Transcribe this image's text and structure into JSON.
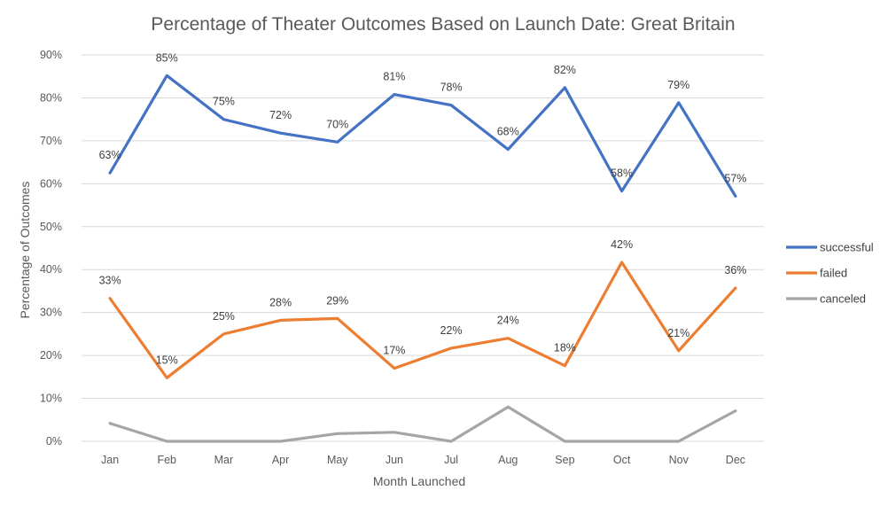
{
  "chart_data": {
    "type": "line",
    "title": "Percentage of Theater Outcomes Based on Launch Date: Great Britain",
    "xlabel": "Month Launched",
    "ylabel": "Percentage of Outcomes",
    "categories": [
      "Jan",
      "Feb",
      "Mar",
      "Apr",
      "May",
      "Jun",
      "Jul",
      "Aug",
      "Sep",
      "Oct",
      "Nov",
      "Dec"
    ],
    "ylim": [
      0,
      90
    ],
    "yticks": [
      "0%",
      "10%",
      "20%",
      "30%",
      "40%",
      "50%",
      "60%",
      "70%",
      "80%",
      "90%"
    ],
    "grid": true,
    "legend_position": "right",
    "series": [
      {
        "name": "successful",
        "color": "#4472c4",
        "values": [
          62.5,
          85.2,
          75.0,
          71.8,
          69.7,
          80.8,
          78.3,
          68.0,
          82.4,
          58.3,
          78.9,
          57.1
        ],
        "labels": [
          "63%",
          "85%",
          "75%",
          "72%",
          "70%",
          "81%",
          "78%",
          "68%",
          "82%",
          "58%",
          "79%",
          "57%"
        ]
      },
      {
        "name": "failed",
        "color": "#ed7d31",
        "values": [
          33.3,
          14.8,
          25.0,
          28.2,
          28.6,
          17.0,
          21.7,
          24.0,
          17.6,
          41.7,
          21.1,
          35.7
        ],
        "labels": [
          "33%",
          "15%",
          "25%",
          "28%",
          "29%",
          "17%",
          "22%",
          "24%",
          "18%",
          "42%",
          "21%",
          "36%"
        ]
      },
      {
        "name": "canceled",
        "color": "#a5a5a5",
        "values": [
          4.2,
          0,
          0,
          0,
          1.8,
          2.1,
          0,
          8.0,
          0,
          0,
          0,
          7.1
        ],
        "labels": []
      }
    ]
  }
}
